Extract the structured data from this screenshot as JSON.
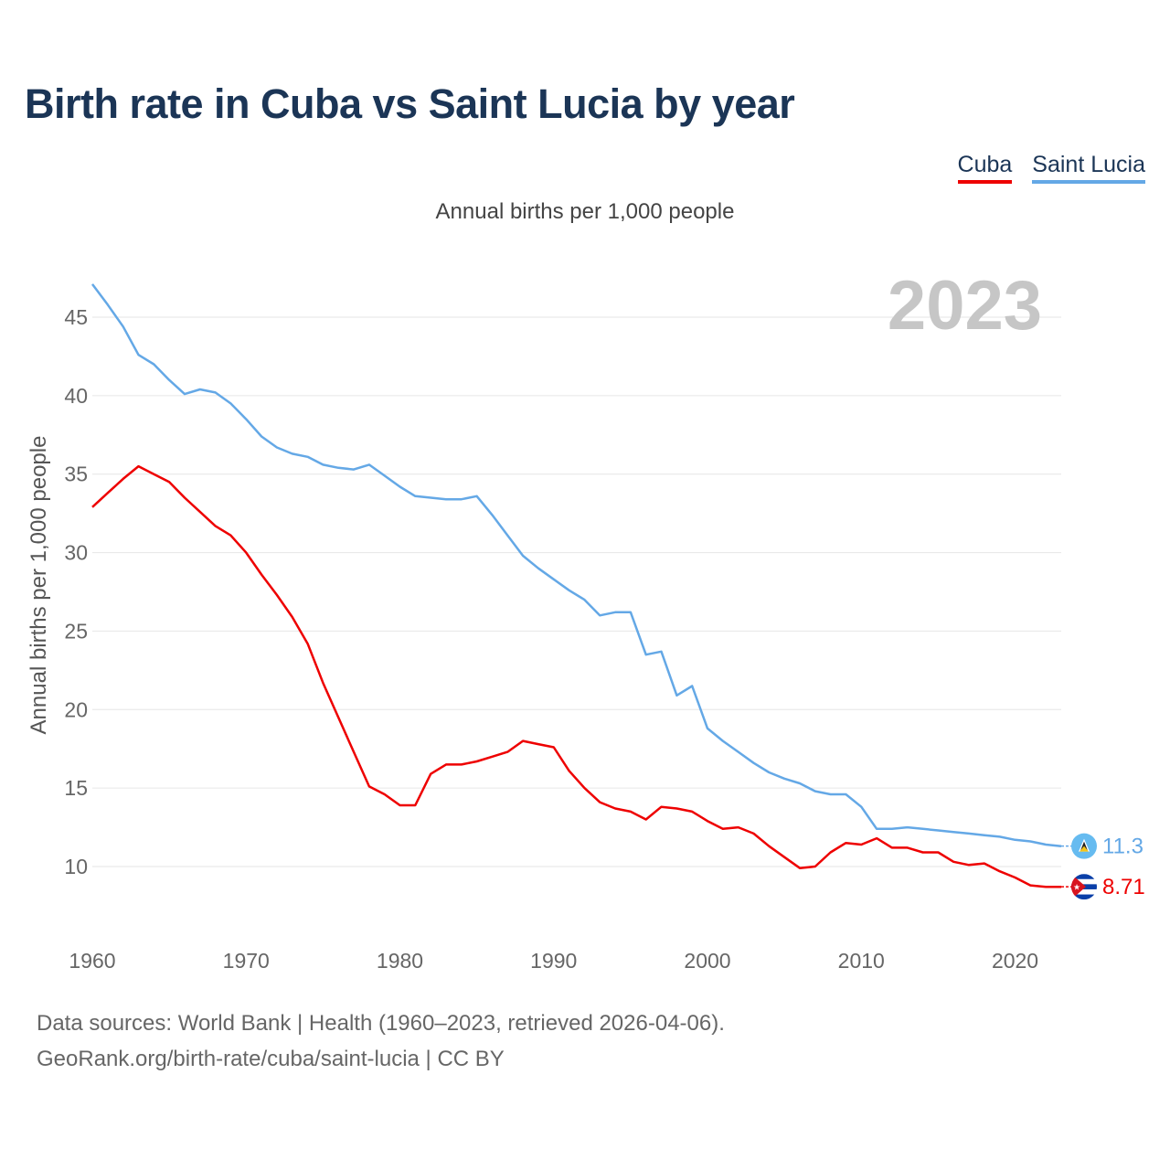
{
  "title": "Birth rate in Cuba vs Saint Lucia by year",
  "legend": [
    {
      "name": "Cuba",
      "color": "#ee0000"
    },
    {
      "name": "Saint Lucia",
      "color": "#64a8e6"
    }
  ],
  "year_watermark": "2023",
  "footer": {
    "line1": "Data sources: World Bank | Health (1960–2023, retrieved 2026-04-06).",
    "line2": "GeoRank.org/birth-rate/cuba/saint-lucia | CC BY"
  },
  "chart_data": {
    "type": "line",
    "title": "Annual births per 1,000 people",
    "xlabel": "",
    "ylabel": "Annual births per 1,000 people",
    "xlim": [
      1960,
      2023
    ],
    "ylim": [
      6,
      47
    ],
    "x_ticks": [
      1960,
      1970,
      1980,
      1990,
      2000,
      2010,
      2020
    ],
    "y_ticks": [
      10,
      15,
      20,
      25,
      30,
      35,
      40,
      45
    ],
    "grid": true,
    "legend_position": "top-right",
    "x": [
      1960,
      1961,
      1962,
      1963,
      1964,
      1965,
      1966,
      1967,
      1968,
      1969,
      1970,
      1971,
      1972,
      1973,
      1974,
      1975,
      1976,
      1977,
      1978,
      1979,
      1980,
      1981,
      1982,
      1983,
      1984,
      1985,
      1986,
      1987,
      1988,
      1989,
      1990,
      1991,
      1992,
      1993,
      1994,
      1995,
      1996,
      1997,
      1998,
      1999,
      2000,
      2001,
      2002,
      2003,
      2004,
      2005,
      2006,
      2007,
      2008,
      2009,
      2010,
      2011,
      2012,
      2013,
      2014,
      2015,
      2016,
      2017,
      2018,
      2019,
      2020,
      2021,
      2022,
      2023
    ],
    "series": [
      {
        "name": "Cuba",
        "color": "#ee0000",
        "end_label": "8.71",
        "values": [
          32.9,
          33.8,
          34.7,
          35.5,
          35.0,
          34.5,
          33.5,
          32.6,
          31.7,
          31.1,
          30.0,
          28.6,
          27.3,
          25.9,
          24.2,
          21.7,
          19.5,
          17.3,
          15.1,
          14.6,
          13.9,
          13.9,
          15.9,
          16.5,
          16.5,
          16.7,
          17.0,
          17.3,
          18.0,
          17.8,
          17.6,
          16.1,
          15.0,
          14.1,
          13.7,
          13.5,
          13.0,
          13.8,
          13.7,
          13.5,
          12.9,
          12.4,
          12.5,
          12.1,
          11.3,
          10.6,
          9.9,
          10.0,
          10.9,
          11.5,
          11.4,
          11.8,
          11.2,
          11.2,
          10.9,
          10.9,
          10.3,
          10.1,
          10.2,
          9.7,
          9.3,
          8.8,
          8.7,
          8.71
        ]
      },
      {
        "name": "Saint Lucia",
        "color": "#64a8e6",
        "end_label": "11.3",
        "values": [
          47.1,
          45.8,
          44.4,
          42.6,
          42.0,
          41.0,
          40.1,
          40.4,
          40.2,
          39.5,
          38.5,
          37.4,
          36.7,
          36.3,
          36.1,
          35.6,
          35.4,
          35.3,
          35.6,
          34.9,
          34.2,
          33.6,
          33.5,
          33.4,
          33.4,
          33.6,
          32.4,
          31.1,
          29.8,
          29.0,
          28.3,
          27.6,
          27.0,
          26.0,
          26.2,
          26.2,
          23.5,
          23.7,
          20.9,
          21.5,
          18.8,
          18.0,
          17.3,
          16.6,
          16.0,
          15.6,
          15.3,
          14.8,
          14.6,
          14.6,
          13.8,
          12.4,
          12.4,
          12.5,
          12.4,
          12.3,
          12.2,
          12.1,
          12.0,
          11.9,
          11.7,
          11.6,
          11.4,
          11.3
        ]
      }
    ]
  }
}
